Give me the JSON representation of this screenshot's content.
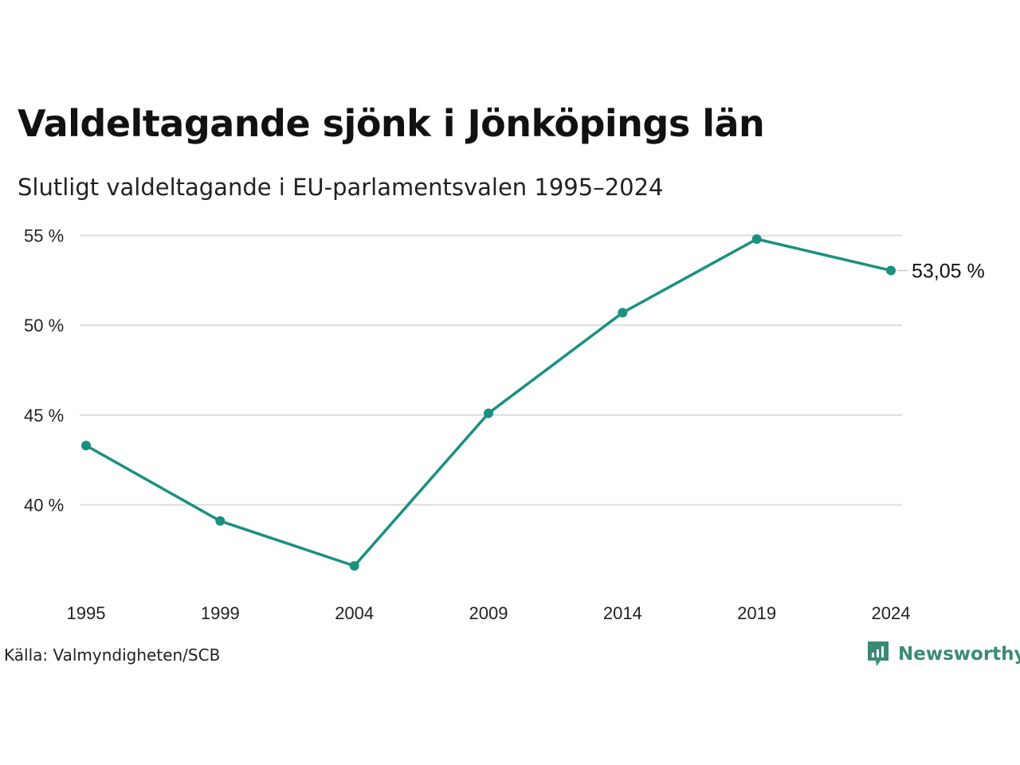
{
  "header": {
    "title": "Valdeltagande sjönk i Jönköpings län",
    "subtitle": "Slutligt valdeltagande i EU-parlamentsvalen 1995–2024"
  },
  "footer": {
    "source": "Källa: Valmyndigheten/SCB",
    "brand": "Newsworthy"
  },
  "colors": {
    "line": "#1a9080",
    "grid": "#dedede",
    "brand": "#3a8a76"
  },
  "icons": {
    "brand_logo": "newsworthy-logo-icon"
  },
  "chart_data": {
    "type": "line",
    "title": "Valdeltagande sjönk i Jönköpings län",
    "subtitle": "Slutligt valdeltagande i EU-parlamentsvalen 1995–2024",
    "x": [
      "1995",
      "1999",
      "2004",
      "2009",
      "2014",
      "2019",
      "2024"
    ],
    "series": [
      {
        "values": [
          43.3,
          39.1,
          36.6,
          45.1,
          50.7,
          54.8,
          53.05
        ]
      }
    ],
    "y_ticks": [
      40,
      45,
      50,
      55
    ],
    "y_tick_labels": [
      "40 %",
      "45 %",
      "50 %",
      "55 %"
    ],
    "ylim": [
      35.5,
      56
    ],
    "end_label": "53,05 %",
    "grid": true,
    "legend": "none"
  }
}
